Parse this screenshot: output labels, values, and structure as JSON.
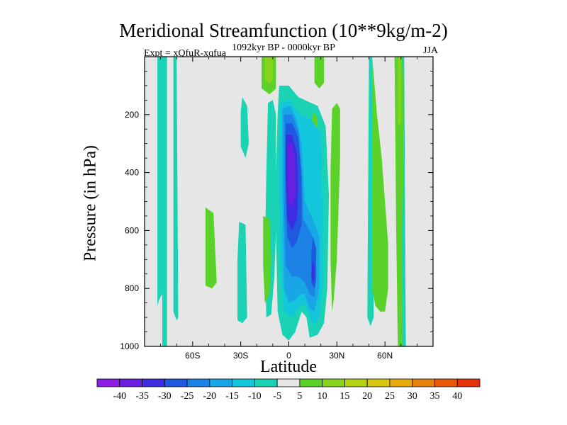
{
  "header": {
    "title": "Meridional Streamfunction (10**9kg/m-2)",
    "subtitle": "1092kyr BP - 0000kyr BP",
    "left_label": "Expt = xQfuR-xqfua",
    "right_label": "JJA"
  },
  "chart_data": {
    "type": "heatmap",
    "title": "Meridional Streamfunction (10**9kg/m-2)",
    "xlabel": "Latitude",
    "ylabel": "Pressure (in hPa)",
    "xlim": [
      -90,
      90
    ],
    "ylim": [
      1000,
      0
    ],
    "x_ticks": [
      {
        "value": -60,
        "label": "60S"
      },
      {
        "value": -30,
        "label": "30S"
      },
      {
        "value": 0,
        "label": "0"
      },
      {
        "value": 30,
        "label": "30N"
      },
      {
        "value": 60,
        "label": "60N"
      }
    ],
    "y_ticks": [
      {
        "value": 200,
        "label": "200"
      },
      {
        "value": 400,
        "label": "400"
      },
      {
        "value": 600,
        "label": "600"
      },
      {
        "value": 800,
        "label": "800"
      },
      {
        "value": 1000,
        "label": "1000"
      }
    ],
    "background_color": "#e6e6e6",
    "colorbar": {
      "levels": [
        -40,
        -35,
        -30,
        -25,
        -20,
        -15,
        -10,
        -5,
        5,
        10,
        15,
        20,
        25,
        30,
        35,
        40
      ],
      "colors": [
        "#8c1ee6",
        "#6a1ee0",
        "#3c2ee0",
        "#2058e0",
        "#1c82e6",
        "#18a6e6",
        "#14c6dc",
        "#1ad2b4",
        "#e6e6e6",
        "#5ad22a",
        "#86d41c",
        "#b4d214",
        "#d6c80e",
        "#e6aa0a",
        "#e6820a",
        "#e65a0a",
        "#e6320a"
      ]
    },
    "regions": [
      {
        "level": -7.5,
        "color": "#1ad2b4",
        "points": [
          [
            -82,
            0
          ],
          [
            -76,
            0
          ],
          [
            -76,
            1000
          ],
          [
            -79,
            1000
          ],
          [
            -79,
            820
          ],
          [
            -81,
            840
          ],
          [
            -82,
            860
          ]
        ]
      },
      {
        "level": -7.5,
        "color": "#1ad2b4",
        "points": [
          [
            -72,
            0
          ],
          [
            -70,
            0
          ],
          [
            -69,
            900
          ],
          [
            -70,
            910
          ],
          [
            -72,
            880
          ]
        ]
      },
      {
        "level": -7.5,
        "color": "#1ad2b4",
        "points": [
          [
            -31,
            570
          ],
          [
            -27,
            580
          ],
          [
            -26,
            900
          ],
          [
            -29,
            920
          ],
          [
            -32,
            910
          ],
          [
            -32,
            700
          ]
        ]
      },
      {
        "level": -7.5,
        "color": "#1ad2b4",
        "points": [
          [
            -29,
            140
          ],
          [
            -26,
            170
          ],
          [
            -25,
            300
          ],
          [
            -27,
            350
          ],
          [
            -30,
            310
          ],
          [
            -30,
            190
          ]
        ]
      },
      {
        "level": -7.5,
        "color": "#1ad2b4",
        "points": [
          [
            -13,
            160
          ],
          [
            -10,
            150
          ],
          [
            -8,
            200
          ],
          [
            -8,
            600
          ],
          [
            -9,
            760
          ],
          [
            -11,
            890
          ],
          [
            -14,
            900
          ],
          [
            -15,
            700
          ],
          [
            -14,
            400
          ]
        ]
      },
      {
        "level": -7.5,
        "color": "#1ad2b4",
        "points": [
          [
            -6,
            100
          ],
          [
            0,
            100
          ],
          [
            6,
            140
          ],
          [
            10,
            150
          ],
          [
            18,
            170
          ],
          [
            23,
            240
          ],
          [
            25,
            480
          ],
          [
            24,
            800
          ],
          [
            22,
            920
          ],
          [
            18,
            960
          ],
          [
            13,
            970
          ],
          [
            11,
            900
          ],
          [
            8,
            880
          ],
          [
            4,
            950
          ],
          [
            0,
            980
          ],
          [
            -4,
            960
          ],
          [
            -7,
            880
          ],
          [
            -8,
            600
          ],
          [
            -8,
            400
          ],
          [
            -7,
            200
          ]
        ]
      },
      {
        "level": -7.5,
        "color": "#1ad2b4",
        "points": [
          [
            50,
            0
          ],
          [
            52,
            0
          ],
          [
            53,
            900
          ],
          [
            51,
            930
          ],
          [
            49,
            900
          ]
        ]
      },
      {
        "level": -7.5,
        "color": "#1ad2b4",
        "points": [
          [
            71,
            0
          ],
          [
            72,
            0
          ],
          [
            73,
            1000
          ],
          [
            71,
            1000
          ]
        ]
      },
      {
        "level": 7.5,
        "color": "#5ad22a",
        "points": [
          [
            -52,
            520
          ],
          [
            -47,
            540
          ],
          [
            -45,
            780
          ],
          [
            -48,
            800
          ],
          [
            -52,
            790
          ]
        ]
      },
      {
        "level": 7.5,
        "color": "#5ad22a",
        "points": [
          [
            -17,
            0
          ],
          [
            -8,
            0
          ],
          [
            -8,
            110
          ],
          [
            -12,
            130
          ],
          [
            -17,
            110
          ]
        ]
      },
      {
        "level": 7.5,
        "color": "#5ad22a",
        "points": [
          [
            -16,
            550
          ],
          [
            -12,
            560
          ],
          [
            -11,
            700
          ],
          [
            -12,
            820
          ],
          [
            -15,
            850
          ],
          [
            -16,
            720
          ]
        ]
      },
      {
        "level": 7.5,
        "color": "#5ad22a",
        "points": [
          [
            16,
            0
          ],
          [
            22,
            0
          ],
          [
            22,
            90
          ],
          [
            19,
            110
          ],
          [
            16,
            90
          ]
        ]
      },
      {
        "level": 7.5,
        "color": "#5ad22a",
        "points": [
          [
            15,
            190
          ],
          [
            18,
            210
          ],
          [
            18,
            300
          ],
          [
            16,
            360
          ],
          [
            14,
            320
          ],
          [
            14,
            250
          ]
        ]
      },
      {
        "level": 7.5,
        "color": "#5ad22a",
        "points": [
          [
            27,
            180
          ],
          [
            30,
            160
          ],
          [
            32,
            180
          ],
          [
            32,
            350
          ],
          [
            30,
            700
          ],
          [
            28,
            840
          ],
          [
            27,
            880
          ],
          [
            26,
            700
          ],
          [
            26,
            400
          ]
        ]
      },
      {
        "level": 7.5,
        "color": "#5ad22a",
        "points": [
          [
            48,
            0
          ],
          [
            52,
            0
          ],
          [
            55,
            200
          ],
          [
            58,
            350
          ],
          [
            60,
            500
          ],
          [
            62,
            650
          ],
          [
            62,
            800
          ],
          [
            60,
            880
          ],
          [
            57,
            880
          ],
          [
            54,
            860
          ],
          [
            52,
            800
          ],
          [
            52,
            0
          ]
        ]
      },
      {
        "level": 7.5,
        "color": "#5ad22a",
        "points": [
          [
            66,
            0
          ],
          [
            71,
            0
          ],
          [
            72,
            200
          ],
          [
            71,
            600
          ],
          [
            71,
            1000
          ],
          [
            68,
            1000
          ],
          [
            67,
            600
          ]
        ]
      },
      {
        "level": 12.5,
        "color": "#86d41c",
        "points": [
          [
            -15,
            0
          ],
          [
            -10,
            0
          ],
          [
            -10,
            80
          ],
          [
            -12,
            95
          ],
          [
            -15,
            80
          ]
        ]
      },
      {
        "level": 12.5,
        "color": "#86d41c",
        "points": [
          [
            68,
            0
          ],
          [
            70,
            0
          ],
          [
            70,
            220
          ],
          [
            69,
            240
          ],
          [
            68,
            220
          ]
        ]
      },
      {
        "level": -12.5,
        "color": "#14c6dc",
        "points": [
          [
            -5,
            160
          ],
          [
            1,
            150
          ],
          [
            4,
            180
          ],
          [
            8,
            200
          ],
          [
            14,
            220
          ],
          [
            20,
            260
          ],
          [
            21,
            500
          ],
          [
            21,
            780
          ],
          [
            19,
            900
          ],
          [
            15,
            930
          ],
          [
            12,
            880
          ],
          [
            9,
            850
          ],
          [
            6,
            870
          ],
          [
            2,
            900
          ],
          [
            -3,
            880
          ],
          [
            -5,
            700
          ],
          [
            -6,
            400
          ]
        ]
      },
      {
        "level": -17.5,
        "color": "#18a6e6",
        "points": [
          [
            -4,
            180
          ],
          [
            1,
            170
          ],
          [
            5,
            220
          ],
          [
            8,
            300
          ],
          [
            10,
            500
          ],
          [
            15,
            560
          ],
          [
            19,
            620
          ],
          [
            19,
            800
          ],
          [
            16,
            880
          ],
          [
            13,
            870
          ],
          [
            10,
            820
          ],
          [
            7,
            820
          ],
          [
            4,
            840
          ],
          [
            0,
            850
          ],
          [
            -3,
            800
          ],
          [
            -4,
            500
          ]
        ]
      },
      {
        "level": -22.5,
        "color": "#1c82e6",
        "points": [
          [
            -3,
            200
          ],
          [
            2,
            200
          ],
          [
            6,
            260
          ],
          [
            8,
            400
          ],
          [
            9,
            560
          ],
          [
            13,
            600
          ],
          [
            16,
            640
          ],
          [
            17,
            760
          ],
          [
            16,
            830
          ],
          [
            13,
            820
          ],
          [
            10,
            780
          ],
          [
            6,
            760
          ],
          [
            2,
            760
          ],
          [
            -2,
            720
          ],
          [
            -3,
            500
          ]
        ]
      },
      {
        "level": -27.5,
        "color": "#2058e0",
        "points": [
          [
            -2,
            230
          ],
          [
            2,
            230
          ],
          [
            6,
            280
          ],
          [
            8,
            420
          ],
          [
            8,
            580
          ],
          [
            5,
            640
          ],
          [
            2,
            660
          ],
          [
            -1,
            620
          ],
          [
            -2,
            450
          ]
        ]
      },
      {
        "level": -27.5,
        "color": "#2058e0",
        "points": [
          [
            15,
            620
          ],
          [
            17,
            660
          ],
          [
            17,
            770
          ],
          [
            16,
            800
          ],
          [
            14,
            780
          ],
          [
            14,
            680
          ]
        ]
      },
      {
        "level": -32.5,
        "color": "#3c2ee0",
        "points": [
          [
            -2,
            270
          ],
          [
            2,
            270
          ],
          [
            5,
            330
          ],
          [
            6,
            450
          ],
          [
            5,
            560
          ],
          [
            2,
            600
          ],
          [
            -1,
            560
          ],
          [
            -2,
            400
          ]
        ]
      },
      {
        "level": -32.5,
        "color": "#3c2ee0",
        "points": [
          [
            15,
            700
          ],
          [
            16,
            720
          ],
          [
            16,
            770
          ],
          [
            15,
            780
          ],
          [
            14,
            750
          ]
        ]
      },
      {
        "level": -37.5,
        "color": "#6a1ee0",
        "points": [
          [
            -1,
            300
          ],
          [
            2,
            300
          ],
          [
            4,
            360
          ],
          [
            4,
            480
          ],
          [
            2,
            520
          ],
          [
            0,
            500
          ],
          [
            -1,
            400
          ]
        ]
      }
    ]
  }
}
